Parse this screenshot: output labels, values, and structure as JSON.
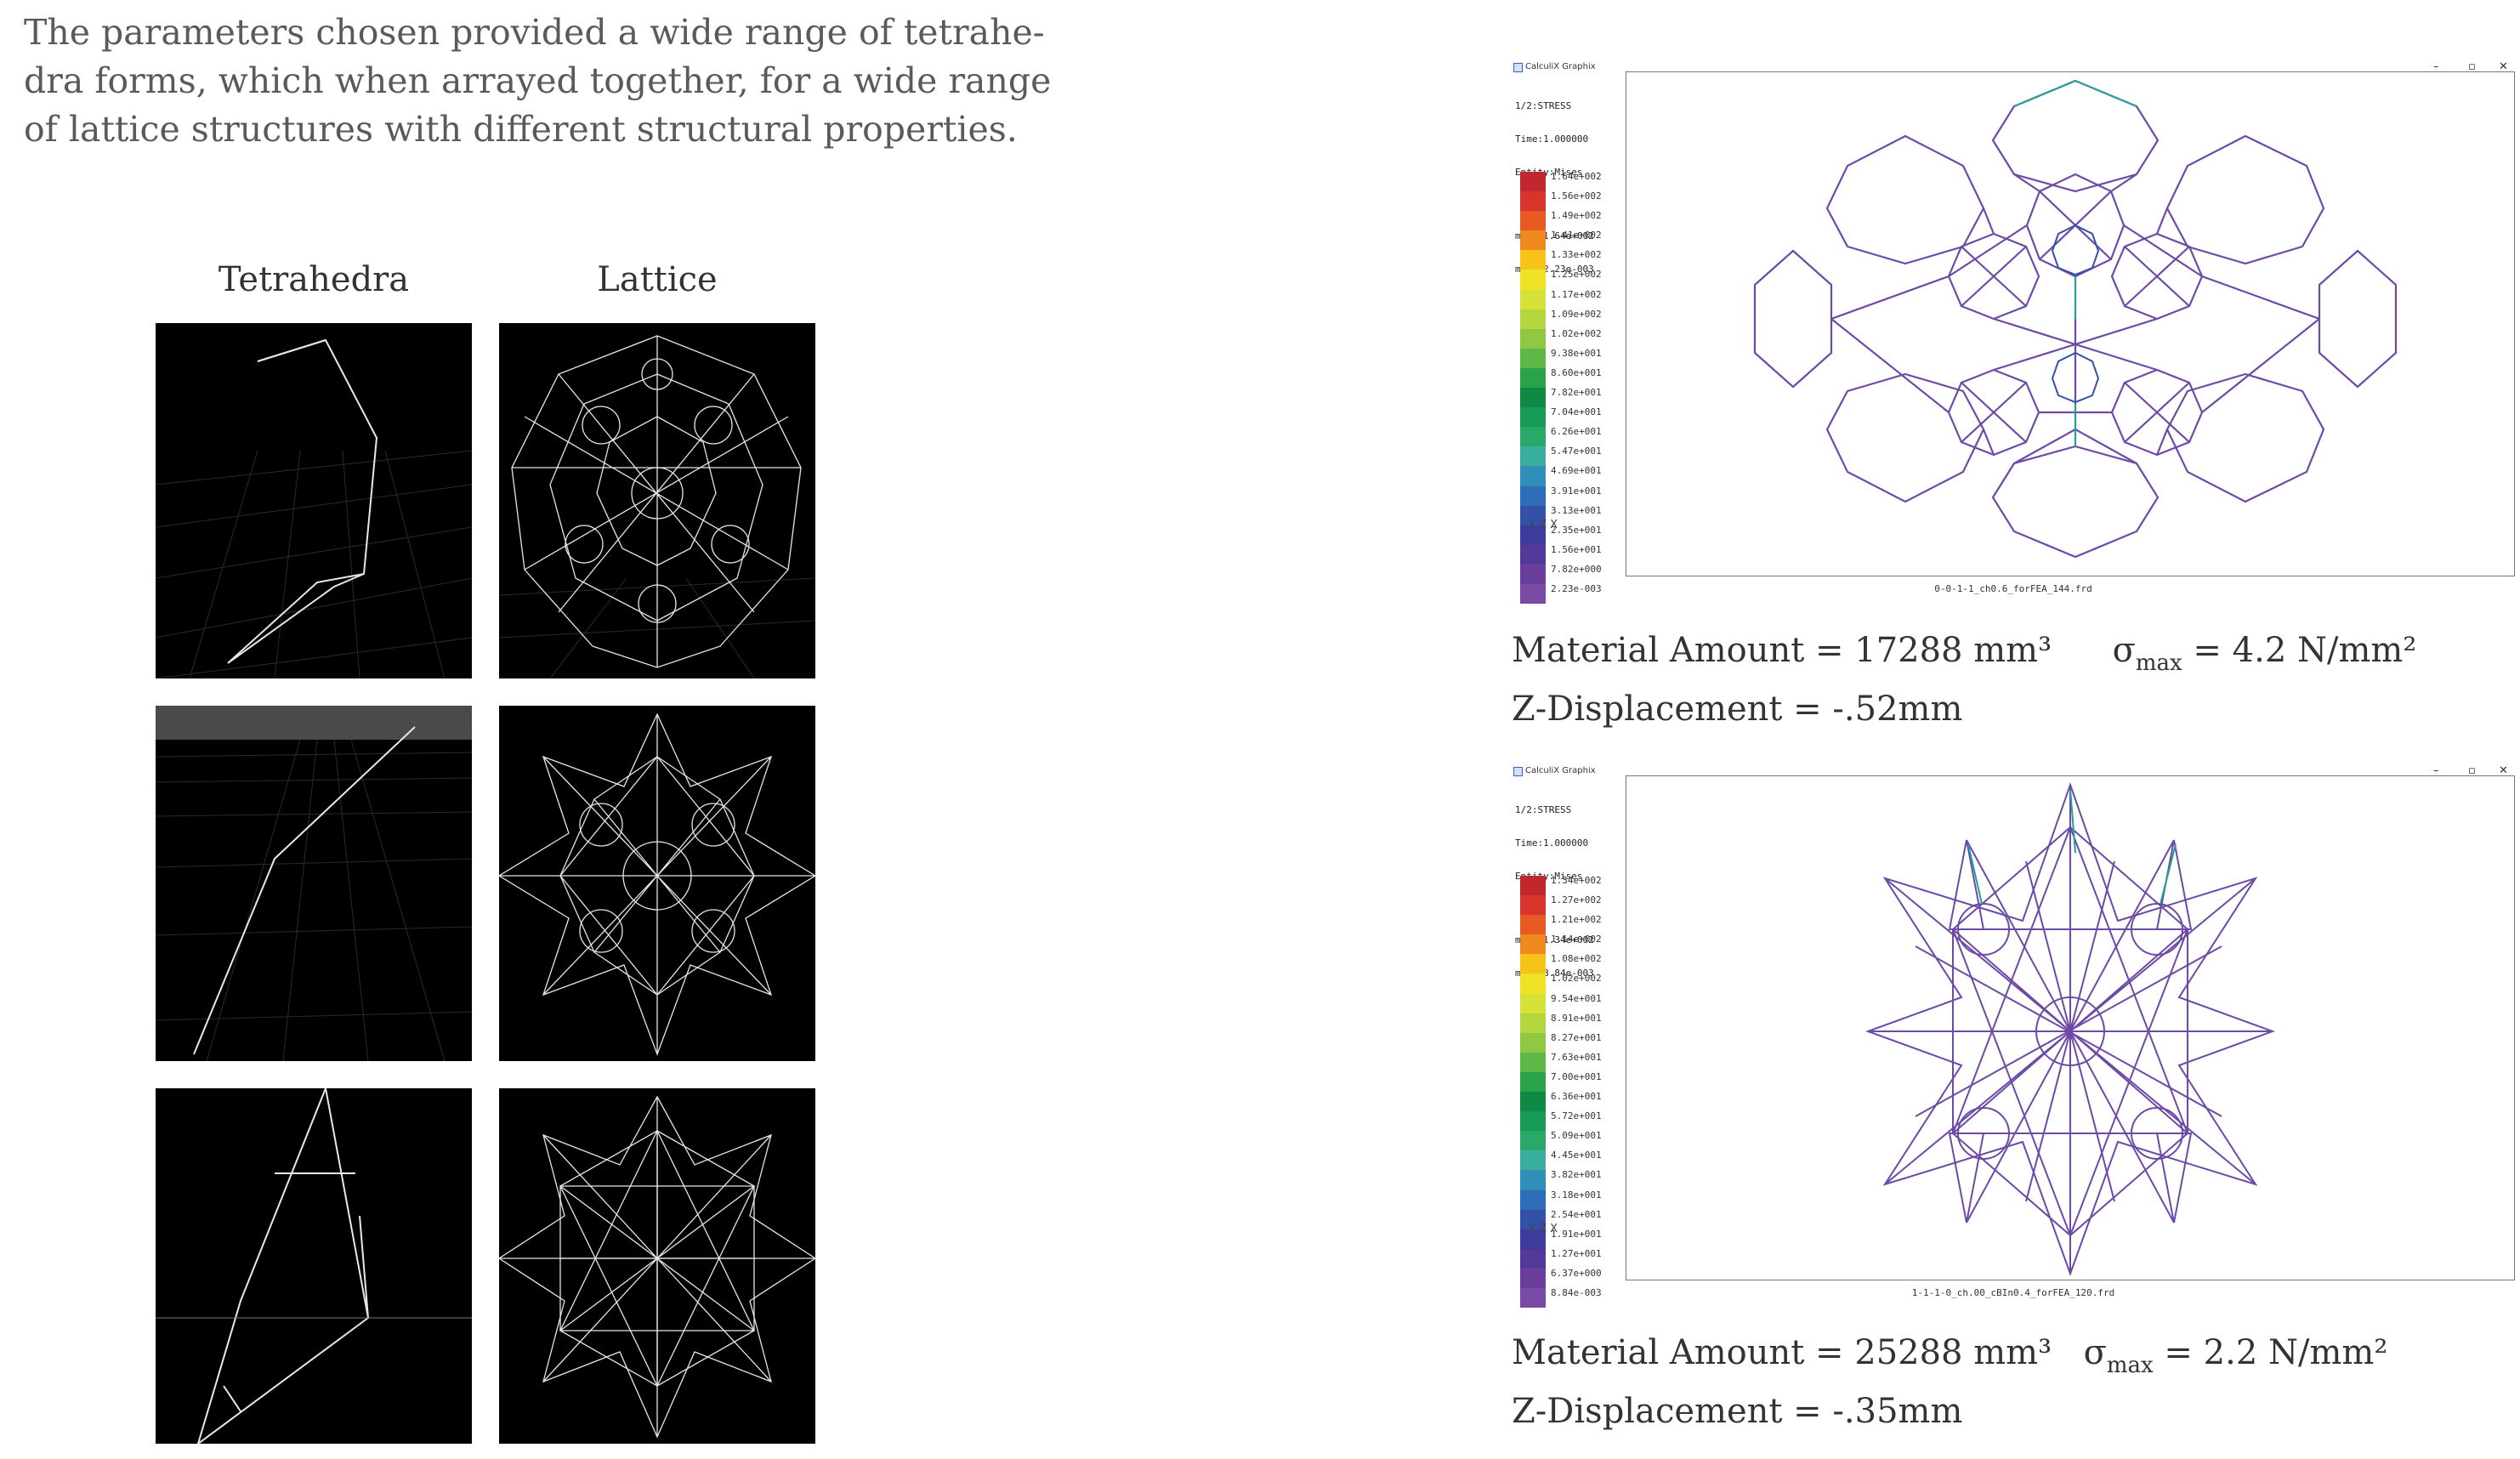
{
  "intro": {
    "line1": "The parameters chosen provided a wide range of tetrahe-",
    "line2": "dra forms, which when arrayed together, for a wide range",
    "line3": "of lattice structures with different structural properties."
  },
  "columns": {
    "tetrahedra": "Tetrahedra",
    "lattice": "Lattice"
  },
  "fea": [
    {
      "window_title": "CalculiX Graphix",
      "info_lines": [
        "1/2:STRESS",
        "Time:1.000000",
        "Entity:Mises"
      ],
      "max_line": "max: 1.64e+002",
      "min_line": "min: 2.23e-003",
      "legend": [
        "1.64e+002",
        "1.56e+002",
        "1.49e+002",
        "1.41e+002",
        "1.33e+002",
        "1.25e+002",
        "1.17e+002",
        "1.09e+002",
        "1.02e+002",
        "9.38e+001",
        "8.60e+001",
        "7.82e+001",
        "7.04e+001",
        "6.26e+001",
        "5.47e+001",
        "4.69e+001",
        "3.91e+001",
        "3.13e+001",
        "2.35e+001",
        "1.56e+001",
        "7.82e+000",
        "2.23e-003"
      ],
      "filename": "0-0-1-1_ch0.6_forFEA_144.frd",
      "axes_label": "Y Z X",
      "material_amount": "Material Amount = 17288 mm³",
      "sigma": "σ",
      "sigma_sub": "max",
      "sigma_value": "= 4.2 N/mm²",
      "z_displacement": "Z-Displacement = -.52mm"
    },
    {
      "window_title": "CalculiX Graphix",
      "info_lines": [
        "1/2:STRESS",
        "Time:1.000000",
        "Entity:Mises"
      ],
      "max_line": "max: 1.34e+002",
      "min_line": "min: 8.84e-003",
      "legend": [
        "1.34e+002",
        "1.27e+002",
        "1.21e+002",
        "1.14e+002",
        "1.08e+002",
        "1.02e+002",
        "9.54e+001",
        "8.91e+001",
        "8.27e+001",
        "7.63e+001",
        "7.00e+001",
        "6.36e+001",
        "5.72e+001",
        "5.09e+001",
        "4.45e+001",
        "3.82e+001",
        "3.18e+001",
        "2.54e+001",
        "1.91e+001",
        "1.27e+001",
        "6.37e+000",
        "8.84e-003"
      ],
      "filename": "1-1-1-0_ch.00_cBIn0.4_forFEA_120.frd",
      "axes_label": "Y Z X",
      "material_amount": "Material Amount = 25288 mm³",
      "sigma": "σ",
      "sigma_sub": "max",
      "sigma_value": "= 2.2 N/mm²",
      "z_displacement": " Z-Displacement = -.35mm"
    }
  ],
  "colors": {
    "legend_scale": [
      "#c1272d",
      "#d8342a",
      "#e85a24",
      "#f08a1f",
      "#f7c21a",
      "#efe224",
      "#d6e238",
      "#b5d63f",
      "#8fc943",
      "#5fb846",
      "#2aa24a",
      "#0e8a44",
      "#169a55",
      "#2aa86a",
      "#3aaea0",
      "#2f8fb8",
      "#2e6cb6",
      "#3351a8",
      "#3d3b9c",
      "#52399a",
      "#6a3f9c",
      "#7a4aa2"
    ],
    "structure": "#6e49a6",
    "hotspot": "#1ea29a"
  }
}
